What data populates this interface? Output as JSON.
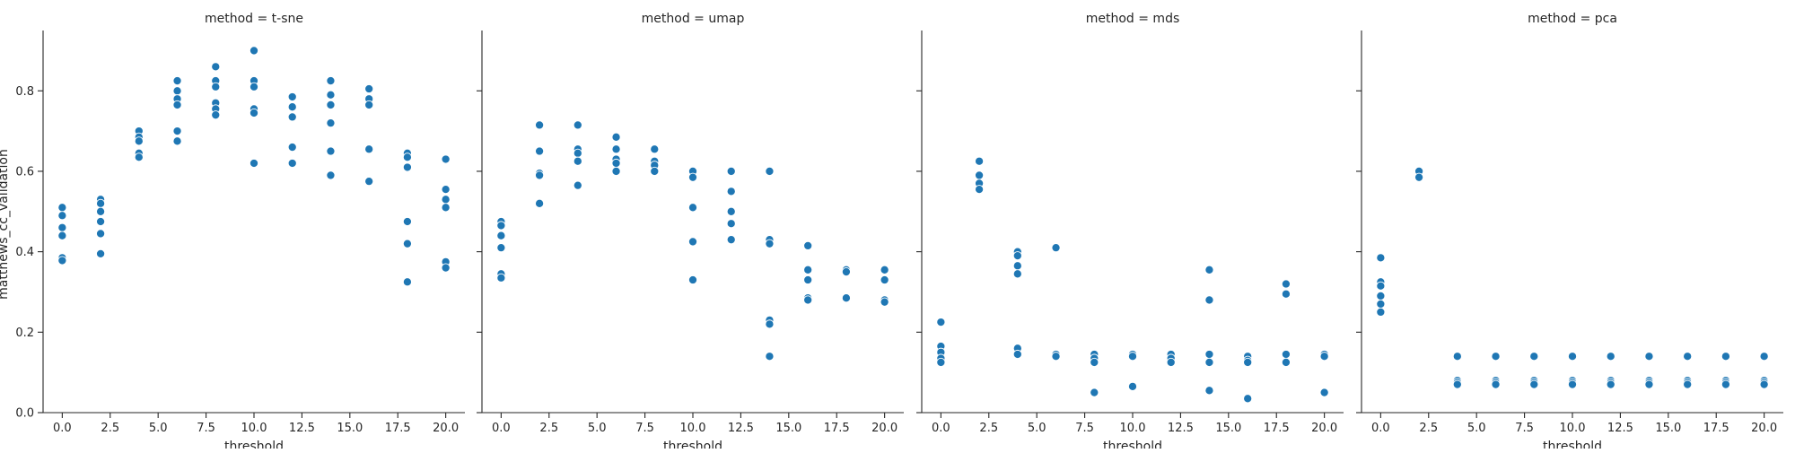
{
  "chart_data": {
    "type": "scatter",
    "xlabel": "threshold",
    "ylabel": "matthews_cc_validation",
    "xlim": [
      -1,
      21
    ],
    "ylim": [
      0,
      0.95
    ],
    "x_ticks": [
      0,
      2.5,
      5,
      7.5,
      10,
      12.5,
      15,
      17.5,
      20
    ],
    "x_tick_labels": [
      "0.0",
      "2.5",
      "5.0",
      "7.5",
      "10.0",
      "12.5",
      "15.0",
      "17.5",
      "20.0"
    ],
    "y_ticks": [
      0,
      0.2,
      0.4,
      0.6,
      0.8
    ],
    "y_tick_labels": [
      "0.0",
      "0.2",
      "0.4",
      "0.6",
      "0.8"
    ],
    "grid": false,
    "color": "#1f77b4",
    "panels": [
      {
        "title": "method = t-sne",
        "points": [
          [
            0,
            0.51
          ],
          [
            0,
            0.49
          ],
          [
            0,
            0.46
          ],
          [
            0,
            0.44
          ],
          [
            0,
            0.385
          ],
          [
            0,
            0.378
          ],
          [
            2,
            0.53
          ],
          [
            2,
            0.52
          ],
          [
            2,
            0.5
          ],
          [
            2,
            0.475
          ],
          [
            2,
            0.445
          ],
          [
            2,
            0.395
          ],
          [
            4,
            0.7
          ],
          [
            4,
            0.685
          ],
          [
            4,
            0.675
          ],
          [
            4,
            0.645
          ],
          [
            4,
            0.635
          ],
          [
            6,
            0.825
          ],
          [
            6,
            0.8
          ],
          [
            6,
            0.78
          ],
          [
            6,
            0.765
          ],
          [
            6,
            0.7
          ],
          [
            6,
            0.675
          ],
          [
            8,
            0.86
          ],
          [
            8,
            0.825
          ],
          [
            8,
            0.81
          ],
          [
            8,
            0.77
          ],
          [
            8,
            0.755
          ],
          [
            8,
            0.74
          ],
          [
            10,
            0.9
          ],
          [
            10,
            0.825
          ],
          [
            10,
            0.81
          ],
          [
            10,
            0.755
          ],
          [
            10,
            0.745
          ],
          [
            10,
            0.62
          ],
          [
            12,
            0.785
          ],
          [
            12,
            0.76
          ],
          [
            12,
            0.735
          ],
          [
            12,
            0.66
          ],
          [
            12,
            0.62
          ],
          [
            14,
            0.825
          ],
          [
            14,
            0.79
          ],
          [
            14,
            0.765
          ],
          [
            14,
            0.72
          ],
          [
            14,
            0.65
          ],
          [
            14,
            0.59
          ],
          [
            16,
            0.805
          ],
          [
            16,
            0.78
          ],
          [
            16,
            0.765
          ],
          [
            16,
            0.655
          ],
          [
            16,
            0.575
          ],
          [
            18,
            0.645
          ],
          [
            18,
            0.635
          ],
          [
            18,
            0.61
          ],
          [
            18,
            0.475
          ],
          [
            18,
            0.42
          ],
          [
            18,
            0.325
          ],
          [
            20,
            0.63
          ],
          [
            20,
            0.555
          ],
          [
            20,
            0.53
          ],
          [
            20,
            0.51
          ],
          [
            20,
            0.375
          ],
          [
            20,
            0.36
          ]
        ]
      },
      {
        "title": "method = umap",
        "points": [
          [
            0,
            0.475
          ],
          [
            0,
            0.465
          ],
          [
            0,
            0.44
          ],
          [
            0,
            0.41
          ],
          [
            0,
            0.345
          ],
          [
            0,
            0.335
          ],
          [
            2,
            0.715
          ],
          [
            2,
            0.65
          ],
          [
            2,
            0.595
          ],
          [
            2,
            0.59
          ],
          [
            2,
            0.52
          ],
          [
            4,
            0.715
          ],
          [
            4,
            0.655
          ],
          [
            4,
            0.645
          ],
          [
            4,
            0.625
          ],
          [
            4,
            0.565
          ],
          [
            6,
            0.685
          ],
          [
            6,
            0.655
          ],
          [
            6,
            0.63
          ],
          [
            6,
            0.62
          ],
          [
            6,
            0.6
          ],
          [
            8,
            0.655
          ],
          [
            8,
            0.625
          ],
          [
            8,
            0.615
          ],
          [
            8,
            0.6
          ],
          [
            10,
            0.6
          ],
          [
            10,
            0.585
          ],
          [
            10,
            0.51
          ],
          [
            10,
            0.425
          ],
          [
            10,
            0.33
          ],
          [
            12,
            0.6
          ],
          [
            12,
            0.55
          ],
          [
            12,
            0.5
          ],
          [
            12,
            0.47
          ],
          [
            12,
            0.43
          ],
          [
            14,
            0.6
          ],
          [
            14,
            0.43
          ],
          [
            14,
            0.42
          ],
          [
            14,
            0.23
          ],
          [
            14,
            0.22
          ],
          [
            14,
            0.14
          ],
          [
            16,
            0.415
          ],
          [
            16,
            0.355
          ],
          [
            16,
            0.33
          ],
          [
            16,
            0.285
          ],
          [
            16,
            0.28
          ],
          [
            18,
            0.355
          ],
          [
            18,
            0.35
          ],
          [
            18,
            0.285
          ],
          [
            20,
            0.355
          ],
          [
            20,
            0.33
          ],
          [
            20,
            0.28
          ],
          [
            20,
            0.275
          ]
        ]
      },
      {
        "title": "method = mds",
        "points": [
          [
            0,
            0.225
          ],
          [
            0,
            0.165
          ],
          [
            0,
            0.15
          ],
          [
            0,
            0.135
          ],
          [
            0,
            0.125
          ],
          [
            2,
            0.625
          ],
          [
            2,
            0.59
          ],
          [
            2,
            0.57
          ],
          [
            2,
            0.555
          ],
          [
            4,
            0.4
          ],
          [
            4,
            0.39
          ],
          [
            4,
            0.365
          ],
          [
            4,
            0.345
          ],
          [
            4,
            0.16
          ],
          [
            4,
            0.145
          ],
          [
            6,
            0.41
          ],
          [
            6,
            0.145
          ],
          [
            6,
            0.14
          ],
          [
            8,
            0.145
          ],
          [
            8,
            0.135
          ],
          [
            8,
            0.125
          ],
          [
            8,
            0.05
          ],
          [
            10,
            0.145
          ],
          [
            10,
            0.14
          ],
          [
            10,
            0.065
          ],
          [
            12,
            0.145
          ],
          [
            12,
            0.135
          ],
          [
            12,
            0.125
          ],
          [
            14,
            0.355
          ],
          [
            14,
            0.28
          ],
          [
            14,
            0.145
          ],
          [
            14,
            0.125
          ],
          [
            14,
            0.055
          ],
          [
            16,
            0.14
          ],
          [
            16,
            0.13
          ],
          [
            16,
            0.125
          ],
          [
            16,
            0.035
          ],
          [
            18,
            0.32
          ],
          [
            18,
            0.295
          ],
          [
            18,
            0.145
          ],
          [
            18,
            0.125
          ],
          [
            20,
            0.145
          ],
          [
            20,
            0.14
          ],
          [
            20,
            0.05
          ]
        ]
      },
      {
        "title": "method = pca",
        "points": [
          [
            0,
            0.385
          ],
          [
            0,
            0.325
          ],
          [
            0,
            0.315
          ],
          [
            0,
            0.29
          ],
          [
            0,
            0.27
          ],
          [
            0,
            0.25
          ],
          [
            2,
            0.6
          ],
          [
            2,
            0.585
          ],
          [
            4,
            0.14
          ],
          [
            4,
            0.08
          ],
          [
            4,
            0.075
          ],
          [
            4,
            0.07
          ],
          [
            6,
            0.14
          ],
          [
            6,
            0.08
          ],
          [
            6,
            0.075
          ],
          [
            6,
            0.07
          ],
          [
            8,
            0.14
          ],
          [
            8,
            0.08
          ],
          [
            8,
            0.075
          ],
          [
            8,
            0.07
          ],
          [
            10,
            0.14
          ],
          [
            10,
            0.08
          ],
          [
            10,
            0.075
          ],
          [
            10,
            0.07
          ],
          [
            12,
            0.14
          ],
          [
            12,
            0.08
          ],
          [
            12,
            0.075
          ],
          [
            12,
            0.07
          ],
          [
            14,
            0.14
          ],
          [
            14,
            0.08
          ],
          [
            14,
            0.075
          ],
          [
            14,
            0.07
          ],
          [
            16,
            0.14
          ],
          [
            16,
            0.08
          ],
          [
            16,
            0.075
          ],
          [
            16,
            0.07
          ],
          [
            18,
            0.14
          ],
          [
            18,
            0.08
          ],
          [
            18,
            0.075
          ],
          [
            18,
            0.07
          ],
          [
            20,
            0.14
          ],
          [
            20,
            0.08
          ],
          [
            20,
            0.075
          ],
          [
            20,
            0.07
          ]
        ]
      }
    ]
  }
}
